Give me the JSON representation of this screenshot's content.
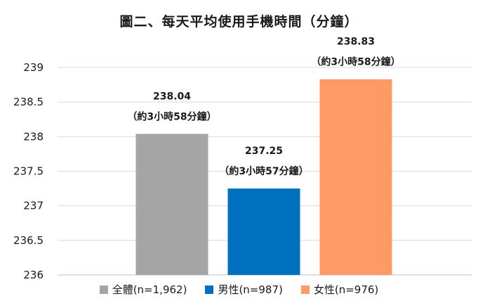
{
  "chart_data": {
    "type": "bar",
    "title": "圖二、每天平均使用手機時間（分鐘）",
    "ylim": [
      236,
      239
    ],
    "yticks": [
      "236",
      "236.5",
      "237",
      "237.5",
      "238",
      "238.5",
      "239"
    ],
    "ytick_values": [
      236,
      236.5,
      237,
      237.5,
      238,
      238.5,
      239
    ],
    "grid": true,
    "legend_position": "bottom",
    "series": [
      {
        "name": "全體(n=1,962)",
        "value": 238.04,
        "value_label": "238.04",
        "note": "（約3小時58分鐘）",
        "color": "#a5a5a5"
      },
      {
        "name": "男性(n=987)",
        "value": 237.25,
        "value_label": "237.25",
        "note": "（約3小時57分鐘）",
        "color": "#0070c0"
      },
      {
        "name": "女性(n=976)",
        "value": 238.83,
        "value_label": "238.83",
        "note": "（約3小時58分鐘）",
        "color": "#ff9966"
      }
    ]
  }
}
